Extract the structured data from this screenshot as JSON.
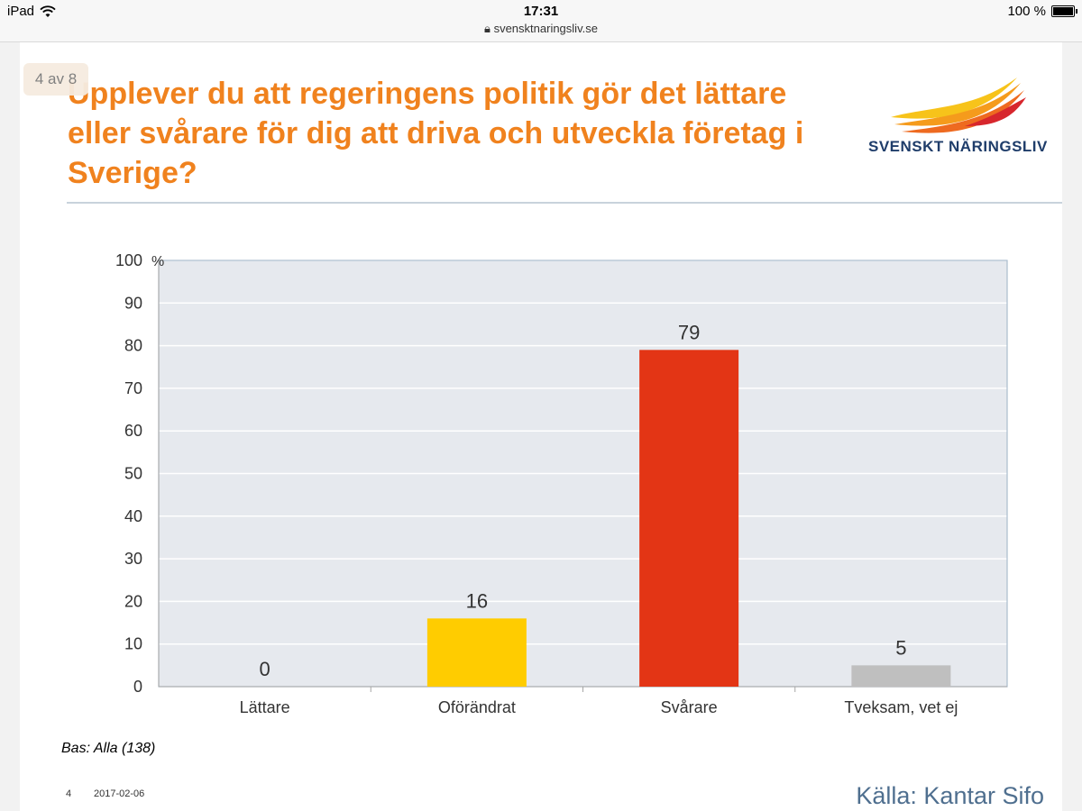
{
  "statusbar": {
    "device": "iPad",
    "time": "17:31",
    "url": "svensktnaringsliv.se",
    "battery": "100 %"
  },
  "pager": "4 av 8",
  "title": "Upplever du att regeringens politik gör det lättare eller svårare för dig att driva och utveckla företag i Sverige?",
  "logo": {
    "text": "SVENSKT NÄRINGSLIV"
  },
  "chart_data": {
    "type": "bar",
    "categories": [
      "Lättare",
      "Oförändrat",
      "Svårare",
      "Tveksam, vet ej"
    ],
    "values": [
      0,
      16,
      79,
      5
    ],
    "colors": [
      "#ffffff",
      "#ffcc00",
      "#e33515",
      "#bfbfbf"
    ],
    "ylim": [
      0,
      100
    ],
    "yticks": [
      0,
      10,
      20,
      30,
      40,
      50,
      60,
      70,
      80,
      90,
      100
    ],
    "yunit": "%",
    "grid": true,
    "legend": "none",
    "background": "#e6e9ee"
  },
  "footer": {
    "base_note": "Bas: Alla (138)",
    "page_number": "4",
    "date": "2017-02-06",
    "source": "Källa: Kantar Sifo"
  },
  "colors": {
    "title": "#f0821e",
    "logo_text": "#1f3d6a",
    "source": "#4f6f8f"
  }
}
